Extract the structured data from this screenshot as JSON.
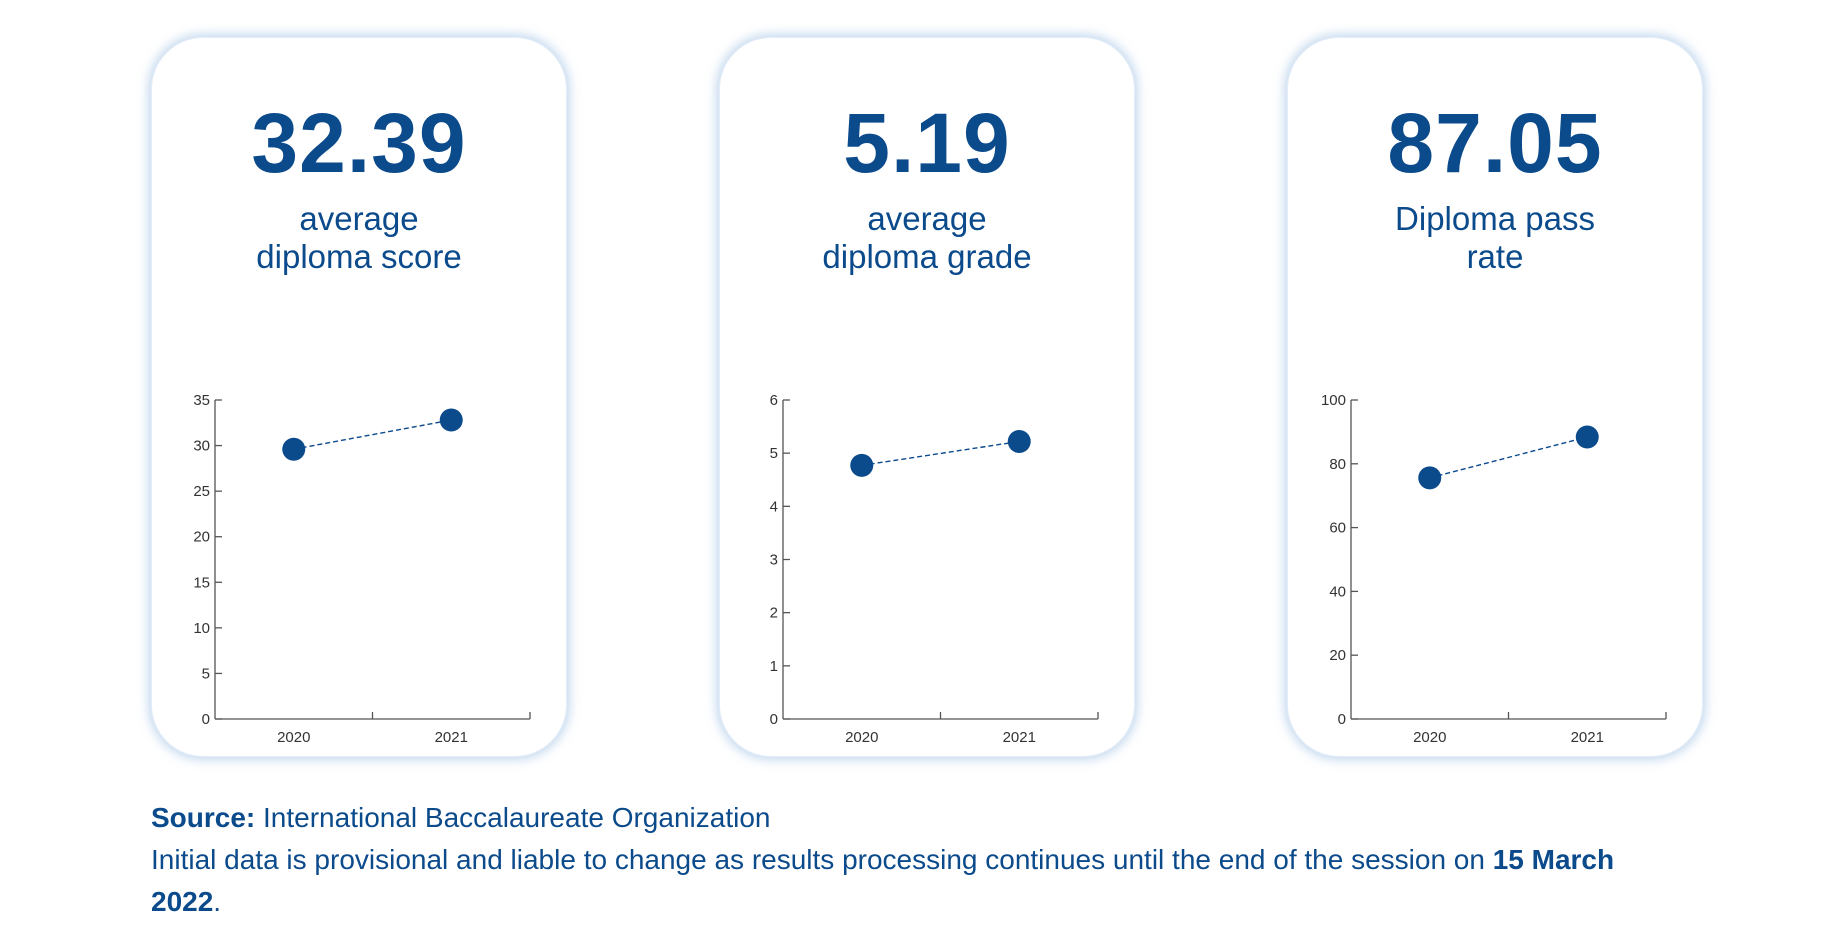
{
  "colors": {
    "accent": "#0b4a8b",
    "card_glow": "#96b9e1",
    "axis": "#555555"
  },
  "cards": [
    {
      "value": "32.39",
      "label": "average\ndiploma score"
    },
    {
      "value": "5.19",
      "label": "average\ndiploma grade"
    },
    {
      "value": "87.05",
      "label": "Diploma pass\nrate"
    }
  ],
  "chart_data": [
    {
      "type": "line",
      "categories": [
        "2020",
        "2021"
      ],
      "values": [
        29.6,
        32.8
      ],
      "ylim": [
        0,
        35
      ],
      "yticks": [
        0,
        5,
        10,
        15,
        20,
        25,
        30,
        35
      ],
      "grid": false,
      "title": "",
      "xlabel": "",
      "ylabel": ""
    },
    {
      "type": "line",
      "categories": [
        "2020",
        "2021"
      ],
      "values": [
        4.77,
        5.22
      ],
      "ylim": [
        0,
        6
      ],
      "yticks": [
        0,
        1,
        2,
        3,
        4,
        5,
        6
      ],
      "grid": false,
      "title": "",
      "xlabel": "",
      "ylabel": ""
    },
    {
      "type": "line",
      "categories": [
        "2020",
        "2021"
      ],
      "values": [
        75.6,
        88.4
      ],
      "ylim": [
        0,
        100
      ],
      "yticks": [
        0,
        20,
        40,
        60,
        80,
        100
      ],
      "grid": false,
      "title": "",
      "xlabel": "",
      "ylabel": ""
    }
  ],
  "footer": {
    "source_label": "Source:",
    "source_text": " International Baccalaureate Organization",
    "note_text": "Initial data is provisional and liable to change as results processing continues until the end of the session on ",
    "note_date": "15 March 2022",
    "note_end": "."
  }
}
